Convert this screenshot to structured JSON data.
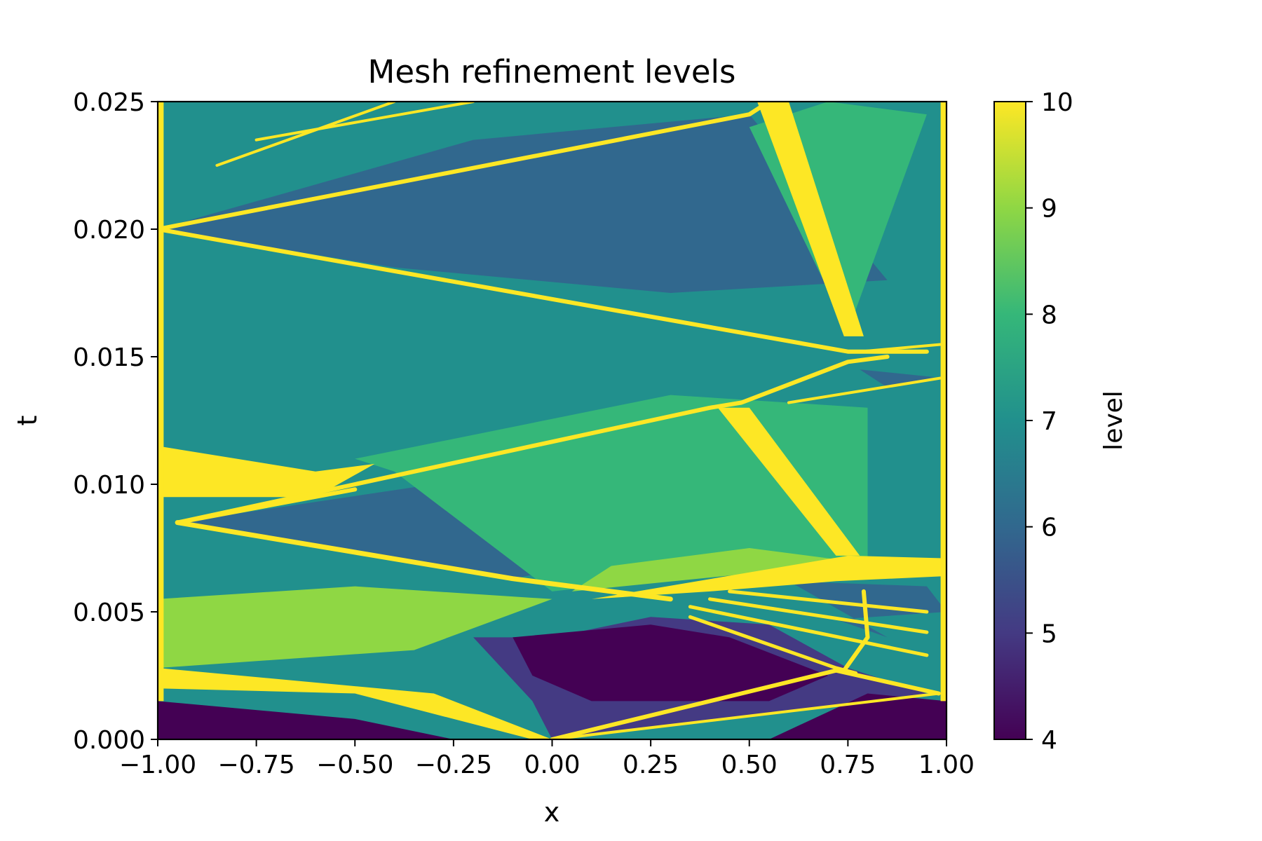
{
  "chart_data": {
    "type": "heatmap",
    "title": "Mesh refinement levels",
    "xlabel": "x",
    "ylabel": "t",
    "xlim": [
      -1.0,
      1.0
    ],
    "ylim": [
      0.0,
      0.025
    ],
    "x_ticks": [
      -1.0,
      -0.75,
      -0.5,
      -0.25,
      0.0,
      0.25,
      0.5,
      0.75,
      1.0
    ],
    "x_tick_labels": [
      "−1.00",
      "−0.75",
      "−0.50",
      "−0.25",
      "0.00",
      "0.25",
      "0.50",
      "0.75",
      "1.00"
    ],
    "y_ticks": [
      0.0,
      0.005,
      0.01,
      0.015,
      0.02,
      0.025
    ],
    "y_tick_labels": [
      "0.000",
      "0.005",
      "0.010",
      "0.015",
      "0.020",
      "0.025"
    ],
    "colorbar": {
      "label": "level",
      "range": [
        4,
        10
      ],
      "ticks": [
        4,
        5,
        6,
        7,
        8,
        9,
        10
      ],
      "tick_labels": [
        "4",
        "5",
        "6",
        "7",
        "8",
        "9",
        "10"
      ],
      "colormap": "viridis",
      "colors": [
        "#440154",
        "#443a83",
        "#31688e",
        "#21908d",
        "#35b779",
        "#8fd744",
        "#fde725"
      ]
    },
    "background_level": 7,
    "regions": [
      {
        "name": "bottom-left-coarse",
        "level": 4,
        "points": [
          [
            -1,
            0
          ],
          [
            -0.25,
            0
          ],
          [
            -0.5,
            0.0008
          ],
          [
            -1,
            0.0015
          ]
        ]
      },
      {
        "name": "left-green-wedge",
        "level": 9,
        "points": [
          [
            -1,
            0.0028
          ],
          [
            -0.35,
            0.0035
          ],
          [
            0.0,
            0.0055
          ],
          [
            -0.5,
            0.006
          ],
          [
            -1,
            0.0055
          ]
        ]
      },
      {
        "name": "bottom-center-coarse",
        "level": 5,
        "points": [
          [
            0.0,
            0
          ],
          [
            0.95,
            0.0018
          ],
          [
            0.75,
            0.0028
          ],
          [
            0.55,
            0.0045
          ],
          [
            0.25,
            0.0048
          ],
          [
            0.0,
            0.004
          ],
          [
            -0.2,
            0.004
          ],
          [
            -0.05,
            0.0015
          ]
        ]
      },
      {
        "name": "bottom-center-coarsest",
        "level": 4,
        "points": [
          [
            0.1,
            0.0015
          ],
          [
            0.55,
            0.0015
          ],
          [
            0.7,
            0.0025
          ],
          [
            0.45,
            0.004
          ],
          [
            0.25,
            0.0045
          ],
          [
            -0.1,
            0.004
          ],
          [
            -0.05,
            0.0025
          ]
        ]
      },
      {
        "name": "bottom-right-coarse",
        "level": 4,
        "points": [
          [
            0.55,
            0
          ],
          [
            1.0,
            0
          ],
          [
            1.0,
            0.0015
          ],
          [
            0.8,
            0.0018
          ]
        ]
      },
      {
        "name": "mid-left-coarse",
        "level": 6,
        "points": [
          [
            -0.95,
            0.0085
          ],
          [
            -0.3,
            0.01
          ],
          [
            0.0,
            0.012
          ],
          [
            0.3,
            0.0085
          ],
          [
            0.65,
            0.008
          ],
          [
            0.3,
            0.0075
          ],
          [
            -0.1,
            0.0063
          ]
        ]
      },
      {
        "name": "upper-left-coarse",
        "level": 6,
        "points": [
          [
            -1,
            0.02
          ],
          [
            -0.2,
            0.0235
          ],
          [
            0.5,
            0.0245
          ],
          [
            0.85,
            0.018
          ],
          [
            0.3,
            0.0175
          ],
          [
            -0.4,
            0.0185
          ]
        ]
      },
      {
        "name": "upper-right-light",
        "level": 8,
        "points": [
          [
            0.5,
            0.024
          ],
          [
            0.75,
            0.016
          ],
          [
            0.95,
            0.0245
          ],
          [
            0.7,
            0.025
          ]
        ]
      },
      {
        "name": "center-green-band",
        "level": 8,
        "points": [
          [
            -0.5,
            0.011
          ],
          [
            0.3,
            0.0135
          ],
          [
            0.8,
            0.013
          ],
          [
            0.8,
            0.007
          ],
          [
            0.4,
            0.0065
          ],
          [
            0.0,
            0.0058
          ],
          [
            -0.4,
            0.0105
          ]
        ]
      },
      {
        "name": "center-lime-band",
        "level": 9,
        "points": [
          [
            0.05,
            0.0058
          ],
          [
            0.5,
            0.0065
          ],
          [
            0.75,
            0.007
          ],
          [
            0.5,
            0.0075
          ],
          [
            0.15,
            0.0068
          ]
        ]
      },
      {
        "name": "right-band-coarse",
        "level": 6,
        "points": [
          [
            0.6,
            0.0062
          ],
          [
            0.95,
            0.006
          ],
          [
            1.0,
            0.005
          ],
          [
            0.72,
            0.0047
          ],
          [
            0.85,
            0.004
          ]
        ]
      },
      {
        "name": "right-upper-coarse",
        "level": 6,
        "points": [
          [
            0.78,
            0.0145
          ],
          [
            0.97,
            0.0142
          ],
          [
            0.85,
            0.0138
          ]
        ]
      },
      {
        "name": "left-yellow-slab",
        "level": 10,
        "points": [
          [
            -1,
            0.0115
          ],
          [
            -0.6,
            0.0105
          ],
          [
            -0.45,
            0.0108
          ],
          [
            -0.6,
            0.0095
          ],
          [
            -1,
            0.0095
          ]
        ]
      },
      {
        "name": "left-edge-fine",
        "level": 10,
        "points": [
          [
            -1,
            0.0015
          ],
          [
            -0.985,
            0.0015
          ],
          [
            -0.985,
            0.025
          ],
          [
            -1,
            0.025
          ]
        ]
      },
      {
        "name": "right-edge-fine",
        "level": 10,
        "points": [
          [
            0.985,
            0.0015
          ],
          [
            1.0,
            0.0015
          ],
          [
            1.0,
            0.025
          ],
          [
            0.985,
            0.025
          ]
        ]
      },
      {
        "name": "upper-right-shock-band",
        "level": 10,
        "points": [
          [
            0.52,
            0.025
          ],
          [
            0.6,
            0.025
          ],
          [
            0.79,
            0.0158
          ],
          [
            0.74,
            0.0158
          ]
        ]
      },
      {
        "name": "mid-right-shock-band",
        "level": 10,
        "points": [
          [
            0.42,
            0.013
          ],
          [
            0.5,
            0.013
          ],
          [
            0.78,
            0.0072
          ],
          [
            0.72,
            0.0072
          ]
        ]
      },
      {
        "name": "right-horizontal-band",
        "level": 10,
        "points": [
          [
            0.1,
            0.0055
          ],
          [
            0.75,
            0.0072
          ],
          [
            1.0,
            0.0071
          ],
          [
            1.0,
            0.0064
          ],
          [
            0.72,
            0.0062
          ],
          [
            0.4,
            0.0058
          ]
        ]
      },
      {
        "name": "bottom-yellow-wedge",
        "level": 10,
        "points": [
          [
            -1,
            0.002
          ],
          [
            -0.5,
            0.0018
          ],
          [
            -0.05,
            0.0
          ],
          [
            0.0,
            0.0
          ],
          [
            -0.3,
            0.0018
          ],
          [
            -1,
            0.0028
          ]
        ]
      }
    ],
    "lines": [
      {
        "name": "shock-0",
        "level": 10,
        "width": 7,
        "points": [
          [
            -0.95,
            0.0085
          ],
          [
            -0.1,
            0.0063
          ],
          [
            0.3,
            0.0055
          ]
        ]
      },
      {
        "name": "shock-1",
        "level": 10,
        "width": 6,
        "points": [
          [
            -0.95,
            0.0085
          ],
          [
            -0.5,
            0.0098
          ]
        ]
      },
      {
        "name": "shock-2",
        "level": 10,
        "width": 6,
        "points": [
          [
            -0.95,
            0.0085
          ],
          [
            0.4,
            0.013
          ],
          [
            0.48,
            0.0132
          ],
          [
            0.75,
            0.0148
          ],
          [
            0.85,
            0.015
          ]
        ]
      },
      {
        "name": "shock-3",
        "level": 10,
        "width": 6,
        "points": [
          [
            -1,
            0.02
          ],
          [
            0.5,
            0.0245
          ],
          [
            0.55,
            0.025
          ]
        ]
      },
      {
        "name": "shock-4",
        "level": 10,
        "width": 6,
        "points": [
          [
            -1,
            0.02
          ],
          [
            0.75,
            0.0152
          ],
          [
            0.95,
            0.0152
          ]
        ]
      },
      {
        "name": "shock-5",
        "level": 10,
        "width": 4,
        "points": [
          [
            -0.85,
            0.0225
          ],
          [
            -0.4,
            0.025
          ]
        ]
      },
      {
        "name": "shock-6",
        "level": 10,
        "width": 4,
        "points": [
          [
            -0.75,
            0.0235
          ],
          [
            -0.2,
            0.025
          ]
        ]
      },
      {
        "name": "shock-7",
        "level": 10,
        "width": 6,
        "points": [
          [
            0.0,
            0.0
          ],
          [
            0.72,
            0.0027
          ],
          [
            0.98,
            0.0018
          ]
        ]
      },
      {
        "name": "shock-8",
        "level": 10,
        "width": 4,
        "points": [
          [
            0.0,
            0.0
          ],
          [
            0.98,
            0.0018
          ]
        ]
      },
      {
        "name": "shock-9",
        "level": 10,
        "width": 5,
        "points": [
          [
            0.35,
            0.0048
          ],
          [
            0.72,
            0.0028
          ],
          [
            0.77,
            0.0026
          ]
        ]
      },
      {
        "name": "shock-10",
        "level": 10,
        "width": 5,
        "points": [
          [
            0.35,
            0.0052
          ],
          [
            0.95,
            0.0033
          ]
        ]
      },
      {
        "name": "shock-11",
        "level": 10,
        "width": 5,
        "points": [
          [
            0.4,
            0.0055
          ],
          [
            0.95,
            0.0042
          ]
        ]
      },
      {
        "name": "shock-12",
        "level": 10,
        "width": 5,
        "points": [
          [
            0.45,
            0.0058
          ],
          [
            0.95,
            0.005
          ]
        ]
      },
      {
        "name": "shock-13",
        "level": 10,
        "width": 6,
        "points": [
          [
            0.74,
            0.0027
          ],
          [
            0.8,
            0.004
          ],
          [
            0.79,
            0.0058
          ]
        ]
      },
      {
        "name": "shock-14",
        "level": 10,
        "width": 4,
        "points": [
          [
            0.6,
            0.0132
          ],
          [
            1.0,
            0.0142
          ]
        ]
      },
      {
        "name": "shock-15",
        "level": 10,
        "width": 4,
        "points": [
          [
            0.78,
            0.0152
          ],
          [
            1.0,
            0.0155
          ]
        ]
      }
    ]
  }
}
